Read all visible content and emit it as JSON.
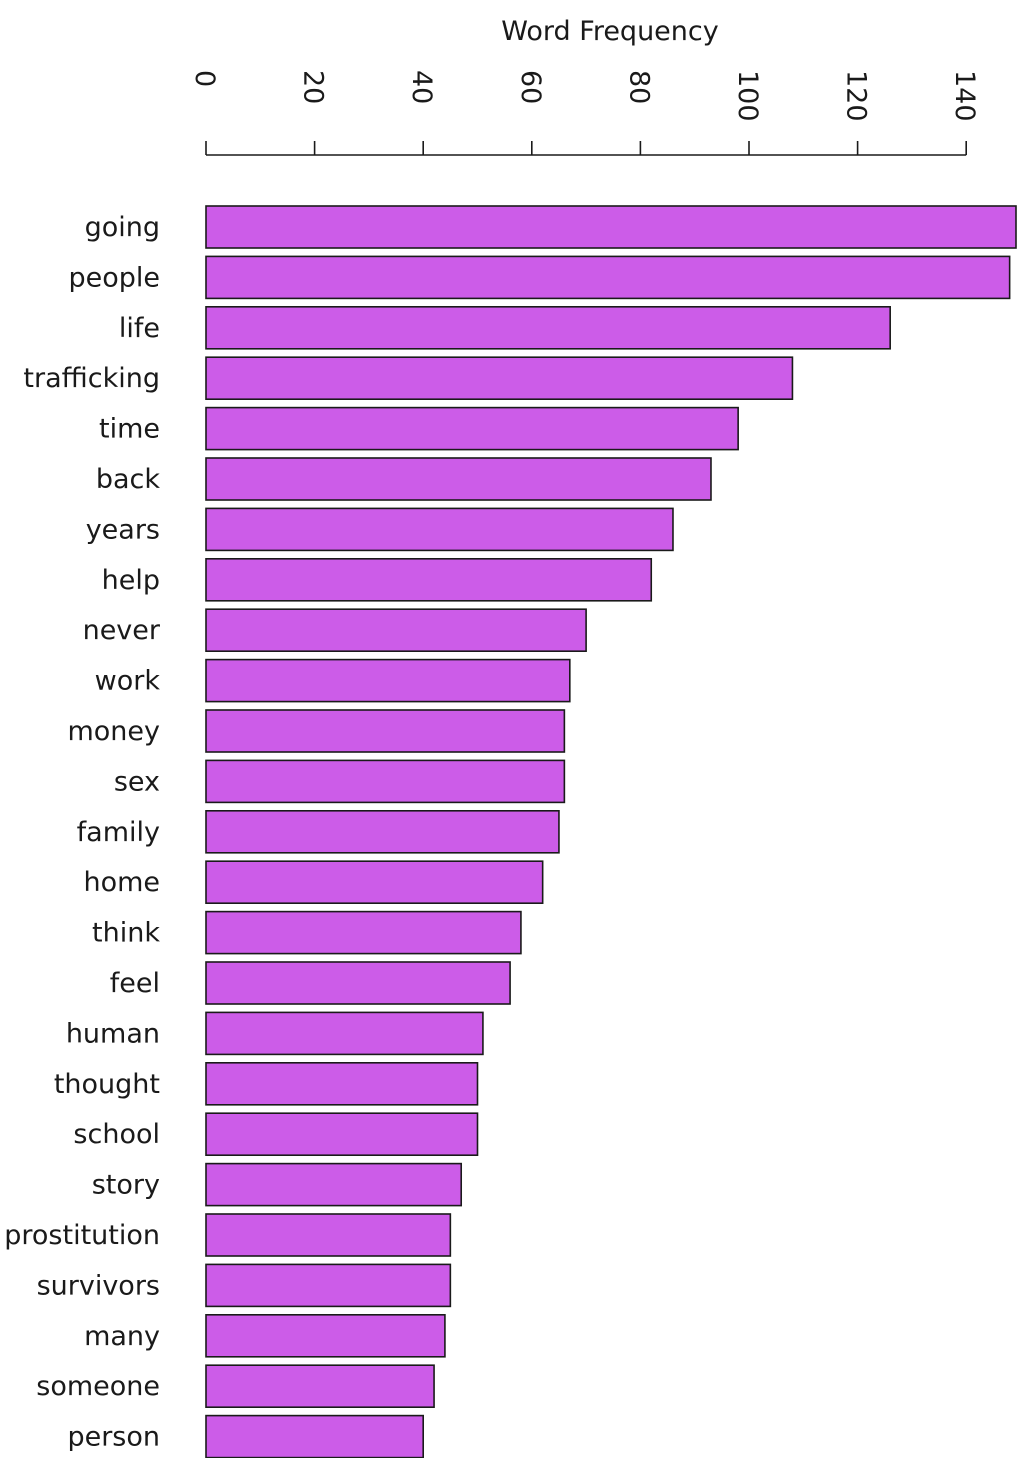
{
  "chart_data": {
    "type": "bar",
    "orientation": "horizontal",
    "title": "Word Frequency",
    "xlabel": "",
    "ylabel": "",
    "grid": false,
    "legend": "none",
    "xlim": [
      0,
      150
    ],
    "xticks": [
      0,
      20,
      40,
      60,
      80,
      100,
      120,
      140
    ],
    "bar_color": "#cc5ce8",
    "categories": [
      "going",
      "people",
      "life",
      "trafficking",
      "time",
      "back",
      "years",
      "help",
      "never",
      "work",
      "money",
      "sex",
      "family",
      "home",
      "think",
      "feel",
      "human",
      "thought",
      "school",
      "story",
      "prostitution",
      "survivors",
      "many",
      "someone",
      "person"
    ],
    "values": [
      153,
      148,
      126,
      108,
      98,
      93,
      86,
      82,
      70,
      67,
      66,
      66,
      65,
      62,
      58,
      56,
      51,
      50,
      50,
      47,
      45,
      45,
      44,
      42,
      40
    ]
  }
}
